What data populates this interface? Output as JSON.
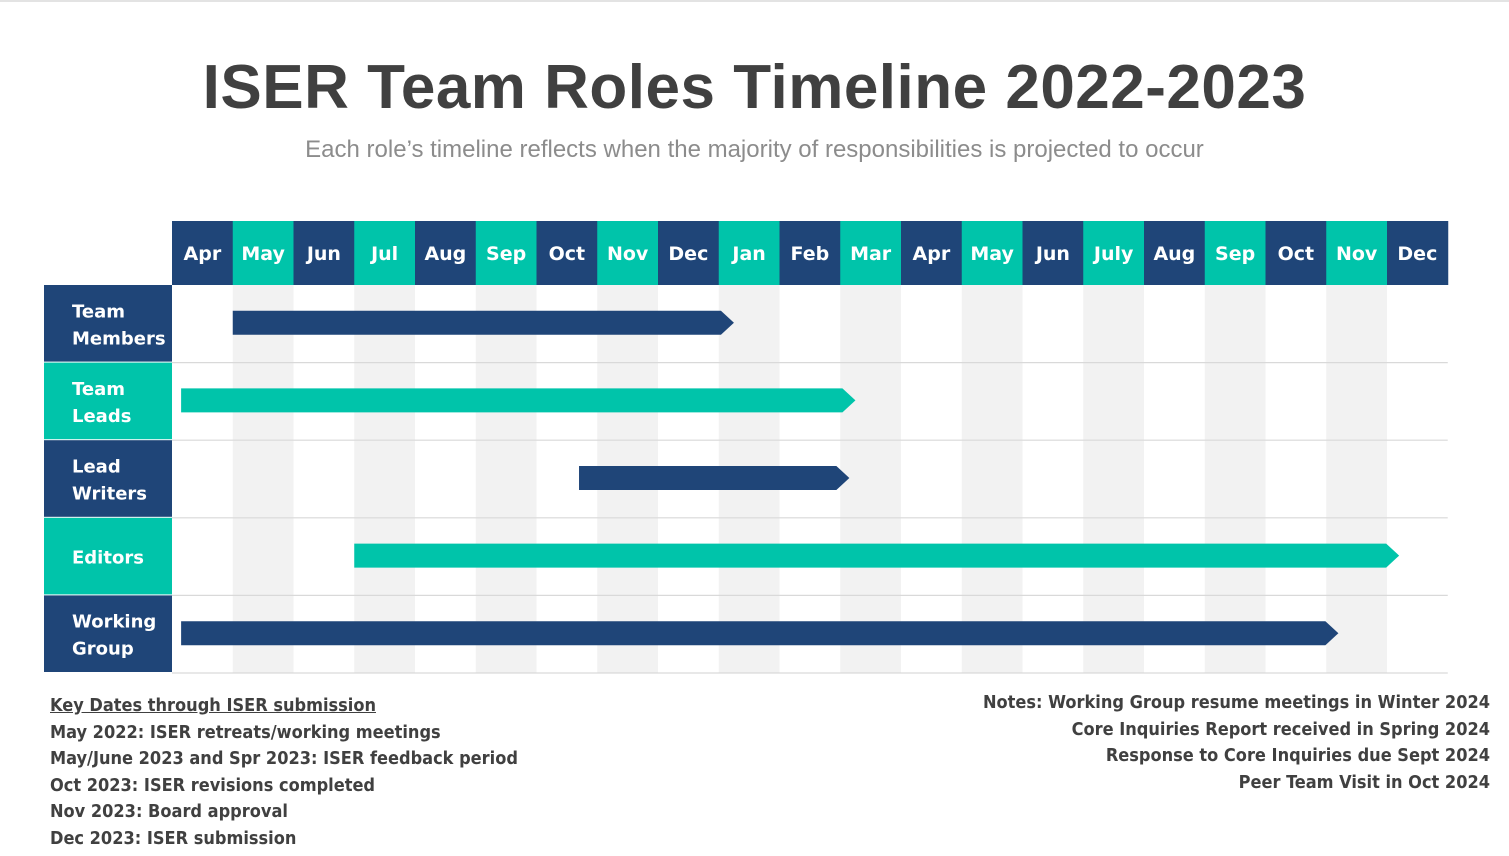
{
  "title": "ISER Team Roles Timeline 2022-2023",
  "subtitle": "Each role’s timeline reflects when the majority of responsibilities is projected to occur",
  "colors": {
    "navy": "#1f4578",
    "teal": "#00c4aa",
    "stripe": "#f2f2f2",
    "divider": "#d9d9d9"
  },
  "chart_data": {
    "type": "gantt",
    "months": [
      "Apr",
      "May",
      "Jun",
      "Jul",
      "Aug",
      "Sep",
      "Oct",
      "Nov",
      "Dec",
      "Jan",
      "Feb",
      "Mar",
      "Apr",
      "May",
      "Jun",
      "July",
      "Aug",
      "Sep",
      "Oct",
      "Nov",
      "Dec"
    ],
    "month_colors": [
      "navy",
      "teal",
      "navy",
      "teal",
      "navy",
      "teal",
      "navy",
      "teal",
      "navy",
      "teal",
      "navy",
      "teal",
      "navy",
      "teal",
      "navy",
      "teal",
      "navy",
      "teal",
      "navy",
      "teal",
      "navy"
    ],
    "rows": [
      {
        "label": "Team Members",
        "color": "navy",
        "start": "May 2022",
        "end": "Jan 2023",
        "start_index": 1.0,
        "end_index": 9.25
      },
      {
        "label": "Team Leads",
        "color": "teal",
        "start": "Apr 2022",
        "end": "Mar 2023",
        "start_index": 0.15,
        "end_index": 11.25
      },
      {
        "label": "Lead Writers",
        "color": "navy",
        "start": "Oct 2022",
        "end": "Mar 2023",
        "start_index": 6.7,
        "end_index": 11.15
      },
      {
        "label": "Editors",
        "color": "teal",
        "start": "Jul 2022",
        "end": "Dec 2023",
        "start_index": 3.0,
        "end_index": 20.2
      },
      {
        "label": "Working Group",
        "color": "navy",
        "start": "Apr 2022",
        "end": "Nov 2023",
        "start_index": 0.15,
        "end_index": 19.2
      }
    ]
  },
  "key_dates": {
    "heading": "Key Dates through ISER submission",
    "items": [
      "May 2022: ISER retreats/working meetings",
      "May/June 2023 and Spr 2023: ISER feedback period",
      "Oct 2023: ISER revisions completed",
      "Nov 2023: Board approval",
      "Dec 2023: ISER submission"
    ]
  },
  "notes": [
    "Notes: Working Group resume meetings in Winter 2024",
    "Core Inquiries Report received in Spring 2024",
    "Response to Core Inquiries due Sept 2024",
    "Peer Team Visit in Oct 2024"
  ]
}
